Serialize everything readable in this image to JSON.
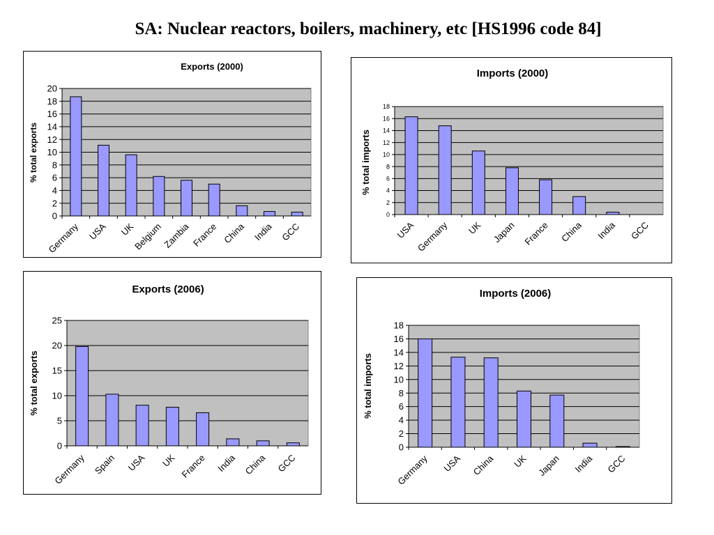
{
  "page": {
    "title": "SA: Nuclear reactors, boilers, machinery, etc [HS1996 code 84]"
  },
  "colors": {
    "bar": "#9999ff",
    "plot_bg": "#c0c0c0",
    "grid": "#000000"
  },
  "chart_data": [
    {
      "id": "exp2000",
      "type": "bar",
      "title": "Exports (2000)",
      "ylabel": "% total exports",
      "xlabel": "",
      "categories": [
        "Germany",
        "USA",
        "UK",
        "Belgium",
        "Zambia",
        "France",
        "China",
        "India",
        "GCC"
      ],
      "values": [
        18.7,
        11.1,
        9.6,
        6.2,
        5.6,
        5.0,
        1.6,
        0.7,
        0.6
      ],
      "ylim": [
        0,
        20
      ],
      "yticks": [
        0,
        2,
        4,
        6,
        8,
        10,
        12,
        14,
        16,
        18,
        20
      ],
      "grid": true,
      "legend": "none"
    },
    {
      "id": "imp2000",
      "type": "bar",
      "title": "Imports (2000)",
      "ylabel": "% total imports",
      "xlabel": "",
      "categories": [
        "USA",
        "Germany",
        "UK",
        "Japan",
        "France",
        "China",
        "India",
        "GCC"
      ],
      "values": [
        16.3,
        14.8,
        10.6,
        7.8,
        5.8,
        3.0,
        0.4,
        0.0
      ],
      "ylim": [
        0,
        18
      ],
      "yticks": [
        0,
        2,
        4,
        6,
        8,
        10,
        12,
        14,
        16,
        18
      ],
      "grid": true,
      "legend": "none"
    },
    {
      "id": "exp2006",
      "type": "bar",
      "title": "Exports (2006)",
      "ylabel": "% total exports",
      "xlabel": "",
      "categories": [
        "Germany",
        "Spain",
        "USA",
        "UK",
        "France",
        "India",
        "China",
        "GCC"
      ],
      "values": [
        19.8,
        10.3,
        8.1,
        7.7,
        6.6,
        1.4,
        1.0,
        0.6
      ],
      "ylim": [
        0,
        25
      ],
      "yticks": [
        0,
        5,
        10,
        15,
        20,
        25
      ],
      "grid": true,
      "legend": "none"
    },
    {
      "id": "imp2006",
      "type": "bar",
      "title": "Imports (2006)",
      "ylabel": "% total imports",
      "xlabel": "",
      "categories": [
        "Germany",
        "USA",
        "China",
        "UK",
        "Japan",
        "India",
        "GCC"
      ],
      "values": [
        16.0,
        13.3,
        13.2,
        8.3,
        7.7,
        0.6,
        0.1
      ],
      "ylim": [
        0,
        18
      ],
      "yticks": [
        0,
        2,
        4,
        6,
        8,
        10,
        12,
        14,
        16,
        18
      ],
      "grid": true,
      "legend": "none"
    }
  ]
}
